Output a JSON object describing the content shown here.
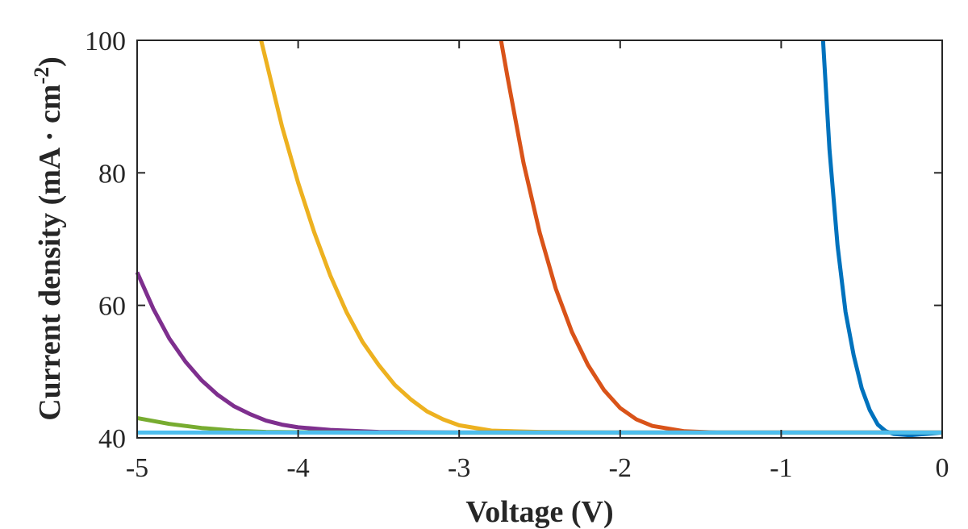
{
  "chart_data": {
    "type": "line",
    "title": "",
    "xlabel": "Voltage (V)",
    "ylabel": "Current density (mA · cm",
    "ylabel_superscript": "-2",
    "ylabel_close": ")",
    "xlim": [
      -5,
      0
    ],
    "ylim": [
      40,
      100
    ],
    "xticks": [
      -5,
      -4,
      -3,
      -2,
      -1,
      0
    ],
    "xtick_labels": [
      "-5",
      "-4",
      "-3",
      "-2",
      "-1",
      "0"
    ],
    "yticks": [
      40,
      60,
      80,
      100
    ],
    "ytick_labels": [
      "40",
      "60",
      "80",
      "100"
    ],
    "grid": false,
    "series": [
      {
        "name": "blue",
        "color": "#0072BD",
        "x": [
          -0.74,
          -0.7,
          -0.65,
          -0.6,
          -0.55,
          -0.5,
          -0.45,
          -0.4,
          -0.35,
          -0.3,
          -0.2,
          -0.1,
          0
        ],
        "y": [
          100,
          83.5,
          69.0,
          59.0,
          52.5,
          47.5,
          44.2,
          42.0,
          41.0,
          40.6,
          40.4,
          40.6,
          40.8
        ]
      },
      {
        "name": "orange",
        "color": "#D95319",
        "x": [
          -2.74,
          -2.7,
          -2.6,
          -2.5,
          -2.4,
          -2.3,
          -2.2,
          -2.1,
          -2.0,
          -1.9,
          -1.8,
          -1.6,
          -1.4,
          -1.0,
          0
        ],
        "y": [
          100,
          94.5,
          81.5,
          71.0,
          62.5,
          56.0,
          51.0,
          47.2,
          44.5,
          42.8,
          41.8,
          41.0,
          40.8,
          40.8,
          40.8
        ]
      },
      {
        "name": "yellow",
        "color": "#EDB120",
        "x": [
          -4.23,
          -4.2,
          -4.1,
          -4.0,
          -3.9,
          -3.8,
          -3.7,
          -3.6,
          -3.5,
          -3.4,
          -3.3,
          -3.2,
          -3.1,
          -3.0,
          -2.8,
          -2.5,
          -2.0,
          0
        ],
        "y": [
          100,
          97.0,
          87.0,
          78.5,
          71.0,
          64.5,
          59.0,
          54.5,
          51.0,
          48.0,
          45.8,
          44.0,
          42.8,
          41.9,
          41.1,
          40.9,
          40.8,
          40.8
        ]
      },
      {
        "name": "purple",
        "color": "#7E2F8E",
        "x": [
          -5.0,
          -4.9,
          -4.8,
          -4.7,
          -4.6,
          -4.5,
          -4.4,
          -4.3,
          -4.2,
          -4.1,
          -4.0,
          -3.8,
          -3.5,
          -3.0,
          -2.0,
          0
        ],
        "y": [
          65.0,
          59.5,
          55.0,
          51.5,
          48.7,
          46.5,
          44.8,
          43.6,
          42.6,
          42.0,
          41.6,
          41.2,
          40.9,
          40.8,
          40.8,
          40.8
        ]
      },
      {
        "name": "green",
        "color": "#77AC30",
        "x": [
          -5.0,
          -4.8,
          -4.6,
          -4.4,
          -4.2,
          -4.0,
          -3.5,
          -3.0,
          -2.0,
          0
        ],
        "y": [
          43.0,
          42.1,
          41.5,
          41.1,
          40.9,
          40.85,
          40.8,
          40.8,
          40.8,
          40.8
        ]
      },
      {
        "name": "light blue",
        "color": "#4DBEEE",
        "x": [
          -5.0,
          -4.0,
          -3.0,
          -2.0,
          -1.0,
          0
        ],
        "y": [
          40.8,
          40.8,
          40.8,
          40.8,
          40.8,
          40.8
        ]
      }
    ]
  }
}
